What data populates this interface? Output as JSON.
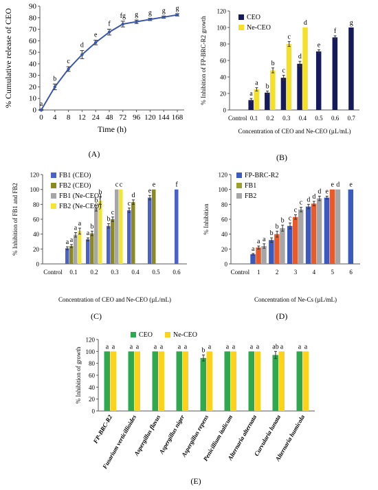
{
  "panel_labels": {
    "A": "(A)",
    "B": "(B)",
    "C": "(C)",
    "D": "(D)",
    "E": "(E)"
  },
  "chart_data": [
    {
      "id": "A",
      "type": "line",
      "ylabel": "% Cumulative release of CEO",
      "xlabel": "Time (h)",
      "categories": [
        "0",
        "4",
        "8",
        "12",
        "24",
        "48",
        "72",
        "96",
        "120",
        "144",
        "168"
      ],
      "series": [
        {
          "values": [
            0,
            20,
            35.5,
            48,
            58.5,
            67.5,
            74.5,
            76.5,
            78.5,
            80.5,
            82.5
          ],
          "errors": [
            0.5,
            2.5,
            2,
            3.5,
            2,
            2.5,
            2.5,
            1.5,
            1,
            1,
            1
          ],
          "letters": [
            "a",
            "b",
            "c",
            "d",
            "e",
            "f",
            "fg",
            "g",
            "g",
            "g",
            "g"
          ],
          "color": "#3b58a8"
        }
      ],
      "ylim": [
        0,
        90
      ],
      "yticks": [
        0,
        10,
        20,
        30,
        40,
        50,
        60,
        70,
        80,
        90
      ],
      "grid": false
    },
    {
      "id": "B",
      "type": "bar",
      "ylabel": "% Inhibition of FP-BRC-R2 growth",
      "xlabel": "Concentration of CEO and Ne-CEO (µL/mL)",
      "categories": [
        "Control",
        "0.1",
        "0.2",
        "0.3",
        "0.4",
        "0.5",
        "0.6",
        "0.7"
      ],
      "series": [
        {
          "name": "CEO",
          "color": "#141a5c",
          "values": [
            0,
            12,
            21,
            39,
            56,
            71,
            88,
            100
          ],
          "errors": [
            0,
            2,
            2,
            3,
            3,
            2,
            2,
            0
          ],
          "letters": [
            "",
            "a",
            "b",
            "c",
            "d",
            "e",
            "f",
            "g"
          ]
        },
        {
          "name": "Ne-CEO",
          "color": "#f5e028",
          "values": [
            0,
            25,
            48,
            80,
            100,
            null,
            null,
            null
          ],
          "errors": [
            0,
            2,
            3,
            3,
            0,
            null,
            null,
            null
          ],
          "letters": [
            "",
            "a",
            "b",
            "c",
            "d",
            "",
            "",
            ""
          ]
        }
      ],
      "ylim": [
        0,
        120
      ],
      "yticks": [
        0,
        20,
        40,
        60,
        80,
        100,
        120
      ],
      "legend": "top-left"
    },
    {
      "id": "C",
      "type": "bar",
      "ylabel": "% Inhibition of FB1 and FB2",
      "xlabel": "Concentration of CEO and Ne-CEO (µL/mL)",
      "categories": [
        "Control",
        "0.1",
        "0.2",
        "0.3",
        "0.4",
        "0.5",
        "0.6"
      ],
      "series": [
        {
          "name": "FB1 (CEO)",
          "color": "#4a62c4",
          "values": [
            0,
            21,
            33,
            51,
            72,
            89,
            100
          ],
          "errors": [
            0,
            2,
            2,
            3,
            3,
            3,
            0
          ],
          "letters": [
            "",
            "a",
            "a",
            "b",
            "c",
            "e",
            "f"
          ]
        },
        {
          "name": "FB2 (CEO)",
          "color": "#8c8a1e",
          "values": [
            0,
            24,
            41,
            60,
            83,
            100,
            null
          ],
          "errors": [
            0,
            2,
            3,
            3,
            3,
            0,
            null
          ],
          "letters": [
            "",
            "a",
            "b",
            "c",
            "d",
            "e",
            ""
          ]
        },
        {
          "name": "FB1 (Ne-CEO)",
          "color": "#a6a6a6",
          "values": [
            0,
            39,
            75,
            100,
            null,
            null,
            null
          ],
          "errors": [
            0,
            3,
            4,
            0,
            null,
            null,
            null
          ],
          "letters": [
            "",
            "a",
            "b",
            "c",
            "",
            "",
            ""
          ]
        },
        {
          "name": "FB2 (Ne-CEO)",
          "color": "#f2e62e",
          "values": [
            0,
            44,
            85,
            100,
            null,
            null,
            null
          ],
          "errors": [
            0,
            4,
            5,
            0,
            null,
            null,
            null
          ],
          "letters": [
            "",
            "a",
            "b",
            "c",
            "",
            "",
            ""
          ]
        }
      ],
      "ylim": [
        0,
        120
      ],
      "yticks": [
        0,
        20,
        40,
        60,
        80,
        100,
        120
      ],
      "legend": "top-left"
    },
    {
      "id": "D",
      "type": "bar",
      "ylabel": "% Inhibition",
      "xlabel": "Concentration of Ne-Cs (µL/mL)",
      "categories": [
        "Control",
        "1",
        "2",
        "3",
        "4",
        "5",
        "6"
      ],
      "series": [
        {
          "name": "FP-BRC-R2",
          "color": "#3a5ac0",
          "values": [
            0,
            13,
            32,
            51,
            77,
            89,
            100
          ],
          "errors": [
            0,
            1,
            3,
            4,
            3,
            2,
            0
          ],
          "letters": [
            "",
            "a",
            "b",
            "c",
            "d",
            "e",
            "e"
          ]
        },
        {
          "name": "FB1",
          "color": "#e85a2a",
          "values": [
            0,
            22,
            40,
            63,
            81,
            100,
            null
          ],
          "errors": [
            0,
            2,
            4,
            3,
            3,
            0,
            null
          ],
          "letters": [
            "",
            "a",
            "b",
            "c",
            "d",
            "e",
            ""
          ]
        },
        {
          "name": "FB2",
          "color": "#a6a6a6",
          "values": [
            0,
            24,
            48,
            73,
            88,
            100,
            null
          ],
          "errors": [
            0,
            3,
            4,
            3,
            3,
            0,
            null
          ],
          "letters": [
            "",
            "a",
            "b",
            "c",
            "d",
            "d",
            ""
          ]
        }
      ],
      "legend_colors": [
        "#3a5ac0",
        "#9aa02a",
        "#a6a6a6"
      ],
      "ylim": [
        0,
        120
      ],
      "yticks": [
        0,
        20,
        40,
        60,
        80,
        100,
        120
      ],
      "legend": "top-left"
    },
    {
      "id": "E",
      "type": "bar",
      "ylabel": "% Inhibition of growth",
      "xlabel": "",
      "categories": [
        "FP-BRC-R2",
        "Fusarium verticillioides",
        "Aspergillus flavus",
        "Aspergillus niger",
        "Aspergillus repens",
        "Penicillium italicum",
        "Alternaria alternata",
        "Curvularia lunata",
        "Alternaria humicola"
      ],
      "series": [
        {
          "name": "CEO",
          "color": "#2fa84f",
          "values": [
            100,
            100,
            100,
            100,
            89,
            100,
            100,
            94,
            100
          ],
          "errors": [
            0,
            0,
            0,
            0,
            5,
            0,
            0,
            6,
            0
          ],
          "letters": [
            "a",
            "a",
            "a",
            "a",
            "b",
            "a",
            "a",
            "ab",
            "a"
          ]
        },
        {
          "name": "Ne-CEO",
          "color": "#ffd21a",
          "values": [
            100,
            100,
            100,
            100,
            100,
            100,
            100,
            100,
            100
          ],
          "errors": [
            0,
            0,
            0,
            0,
            0,
            0,
            0,
            0,
            0
          ],
          "letters": [
            "a",
            "a",
            "a",
            "a",
            "a",
            "a",
            "a",
            "a",
            "a"
          ]
        }
      ],
      "ylim": [
        0,
        120
      ],
      "yticks": [
        0,
        20,
        40,
        60,
        80,
        100,
        120
      ],
      "legend": "top-center"
    }
  ]
}
